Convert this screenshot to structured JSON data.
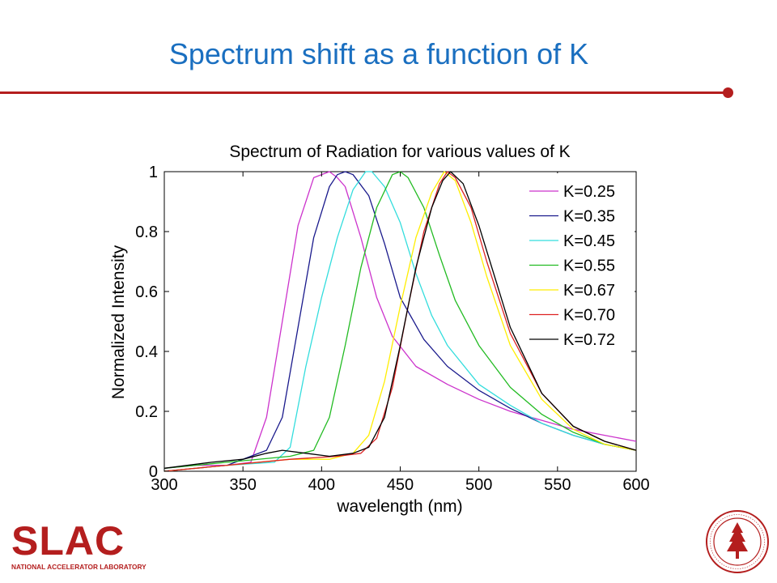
{
  "slide": {
    "title": "Spectrum shift as a function of K",
    "accent_color": "#b41e1e",
    "title_color": "#1a6fc0"
  },
  "logo": {
    "name": "SLAC",
    "subtitle": "NATIONAL ACCELERATOR LABORATORY"
  },
  "seal": {
    "icon": "stanford-seal-icon",
    "color": "#b41e1e"
  },
  "chart_data": {
    "type": "line",
    "title": "Spectrum of Radiation for various values of K",
    "xlabel": "wavelength (nm)",
    "ylabel": "Normalized Intensity",
    "xlim": [
      300,
      600
    ],
    "ylim": [
      0,
      1
    ],
    "xticks": [
      300,
      350,
      400,
      450,
      500,
      550,
      600
    ],
    "yticks": [
      0,
      0.2,
      0.4,
      0.6,
      0.8,
      1
    ],
    "ytick_labels": [
      "0",
      "0.2",
      "0.4",
      "0.6",
      "0.8",
      "1"
    ],
    "grid": false,
    "legend_position": "top-right",
    "series": [
      {
        "name": "K=0.25",
        "color": "#cc33cc",
        "x": [
          300,
          320,
          340,
          355,
          365,
          375,
          385,
          395,
          405,
          410,
          415,
          425,
          435,
          445,
          460,
          480,
          500,
          520,
          540,
          560,
          580,
          600
        ],
        "y": [
          0.01,
          0.02,
          0.02,
          0.03,
          0.18,
          0.5,
          0.82,
          0.98,
          1.0,
          0.98,
          0.95,
          0.78,
          0.58,
          0.45,
          0.35,
          0.29,
          0.24,
          0.2,
          0.17,
          0.14,
          0.12,
          0.1
        ]
      },
      {
        "name": "K=0.35",
        "color": "#1a1a8c",
        "x": [
          300,
          320,
          340,
          355,
          365,
          375,
          385,
          395,
          405,
          410,
          415,
          420,
          430,
          440,
          450,
          465,
          480,
          500,
          520,
          540,
          560,
          580,
          600
        ],
        "y": [
          0.0,
          0.01,
          0.02,
          0.05,
          0.07,
          0.18,
          0.48,
          0.78,
          0.95,
          0.99,
          1.0,
          0.99,
          0.92,
          0.76,
          0.58,
          0.44,
          0.35,
          0.27,
          0.21,
          0.16,
          0.12,
          0.09,
          0.07
        ]
      },
      {
        "name": "K=0.45",
        "color": "#33dddd",
        "x": [
          300,
          340,
          370,
          380,
          390,
          400,
          410,
          420,
          428,
          432,
          440,
          450,
          460,
          470,
          480,
          500,
          520,
          540,
          560,
          580,
          600
        ],
        "y": [
          0.0,
          0.02,
          0.03,
          0.08,
          0.35,
          0.58,
          0.78,
          0.94,
          1.0,
          1.0,
          0.95,
          0.83,
          0.66,
          0.52,
          0.42,
          0.29,
          0.22,
          0.16,
          0.12,
          0.09,
          0.07
        ]
      },
      {
        "name": "K=0.55",
        "color": "#22bb22",
        "x": [
          300,
          340,
          380,
          395,
          405,
          415,
          425,
          435,
          445,
          450,
          455,
          465,
          475,
          485,
          500,
          520,
          540,
          560,
          580,
          600
        ],
        "y": [
          0.01,
          0.03,
          0.05,
          0.07,
          0.18,
          0.42,
          0.68,
          0.88,
          0.99,
          1.0,
          0.98,
          0.88,
          0.72,
          0.57,
          0.42,
          0.28,
          0.19,
          0.13,
          0.09,
          0.07
        ]
      },
      {
        "name": "K=0.67",
        "color": "#ffee00",
        "x": [
          300,
          340,
          380,
          405,
          420,
          430,
          440,
          450,
          460,
          470,
          478,
          485,
          495,
          505,
          520,
          540,
          560,
          580,
          600
        ],
        "y": [
          0.0,
          0.02,
          0.04,
          0.04,
          0.06,
          0.12,
          0.3,
          0.55,
          0.78,
          0.93,
          1.0,
          0.97,
          0.83,
          0.65,
          0.42,
          0.24,
          0.14,
          0.09,
          0.07
        ]
      },
      {
        "name": "K=0.70",
        "color": "#dd2222",
        "x": [
          300,
          340,
          380,
          410,
          425,
          435,
          445,
          455,
          465,
          475,
          480,
          485,
          495,
          505,
          520,
          540,
          560,
          580,
          600
        ],
        "y": [
          0.0,
          0.02,
          0.04,
          0.05,
          0.06,
          0.11,
          0.28,
          0.55,
          0.8,
          0.96,
          1.0,
          0.98,
          0.88,
          0.7,
          0.46,
          0.26,
          0.15,
          0.1,
          0.07
        ]
      },
      {
        "name": "K=0.72",
        "color": "#000000",
        "x": [
          300,
          330,
          350,
          365,
          375,
          390,
          405,
          420,
          430,
          440,
          450,
          460,
          470,
          477,
          482,
          490,
          500,
          510,
          520,
          540,
          560,
          580,
          600
        ],
        "y": [
          0.01,
          0.03,
          0.04,
          0.06,
          0.07,
          0.06,
          0.05,
          0.06,
          0.08,
          0.18,
          0.42,
          0.68,
          0.88,
          0.97,
          1.0,
          0.96,
          0.82,
          0.65,
          0.48,
          0.26,
          0.15,
          0.1,
          0.07
        ]
      }
    ]
  }
}
